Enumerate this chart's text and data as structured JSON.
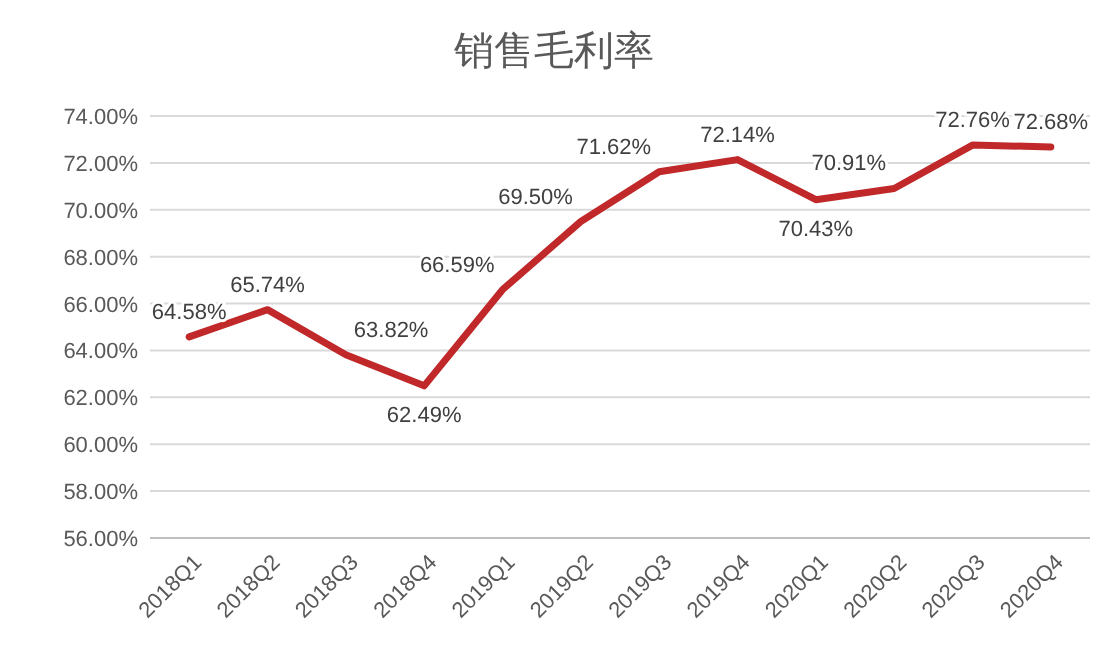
{
  "chart_data": {
    "type": "line",
    "title": "销售毛利率",
    "categories": [
      "2018Q1",
      "2018Q2",
      "2018Q3",
      "2018Q4",
      "2019Q1",
      "2019Q2",
      "2019Q3",
      "2019Q4",
      "2020Q1",
      "2020Q2",
      "2020Q3",
      "2020Q4"
    ],
    "series": [
      {
        "color": "#c0282a",
        "values": [
          64.58,
          65.74,
          63.82,
          62.49,
          66.59,
          69.5,
          71.62,
          72.14,
          70.43,
          70.91,
          72.76,
          72.68
        ],
        "value_labels": [
          "64.58%",
          "65.74%",
          "63.82%",
          "62.49%",
          "66.59%",
          "69.50%",
          "71.62%",
          "72.14%",
          "70.43%",
          "70.91%",
          "72.76%",
          "72.68%"
        ]
      }
    ],
    "ylim": [
      56,
      74
    ],
    "yticks": [
      {
        "value": 56,
        "label": "56.00%"
      },
      {
        "value": 58,
        "label": "58.00%"
      },
      {
        "value": 60,
        "label": "60.00%"
      },
      {
        "value": 62,
        "label": "62.00%"
      },
      {
        "value": 64,
        "label": "64.00%"
      },
      {
        "value": 66,
        "label": "66.00%"
      },
      {
        "value": 68,
        "label": "68.00%"
      },
      {
        "value": 70,
        "label": "70.00%"
      },
      {
        "value": 72,
        "label": "72.00%"
      },
      {
        "value": 74,
        "label": "74.00%"
      }
    ],
    "grid": "y",
    "marker": "none",
    "line_style": "solid"
  }
}
